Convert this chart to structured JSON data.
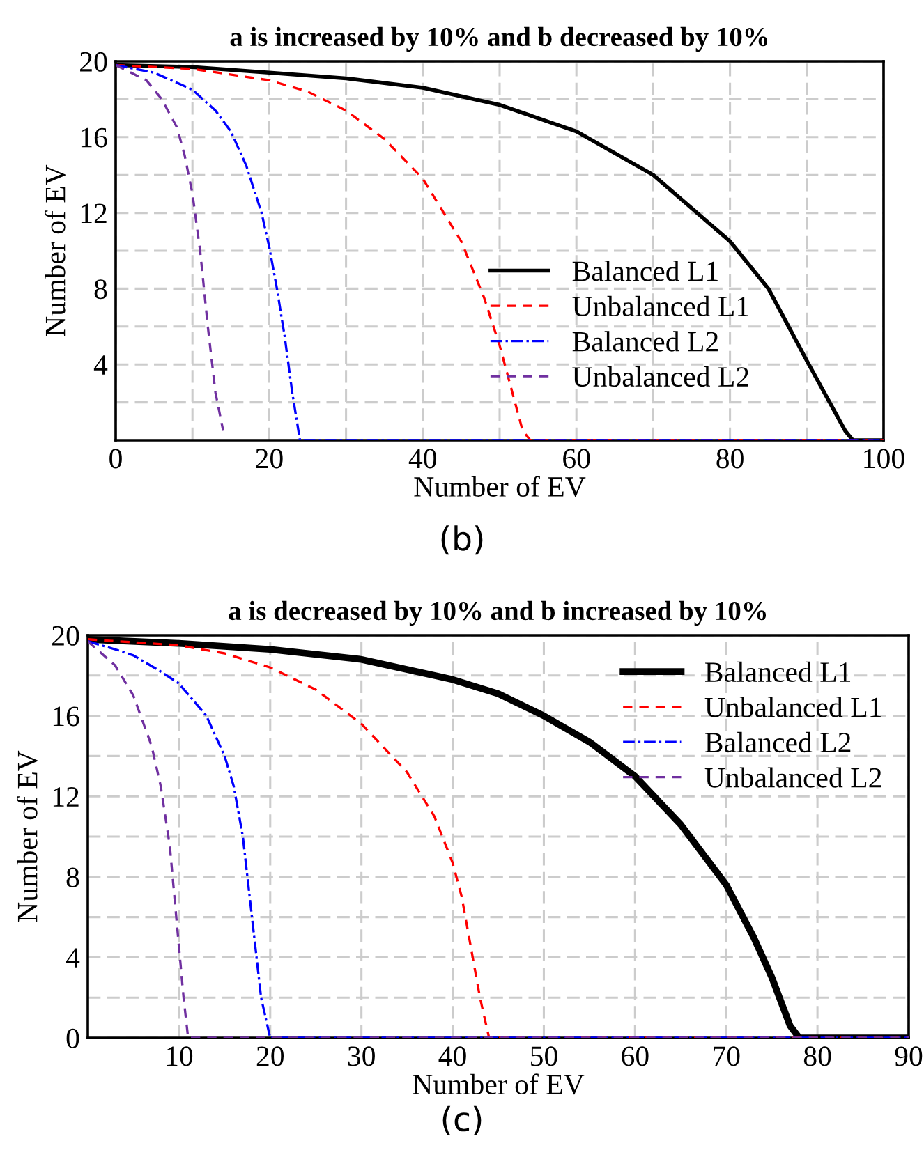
{
  "chart_data": [
    {
      "type": "line",
      "title": "a is increased by 10% and b decreased by 10%",
      "xlabel": "Number of EV",
      "ylabel": "Number of EV",
      "xlim": [
        0,
        100
      ],
      "ylim": [
        0,
        20
      ],
      "xticks": [
        0,
        {
          "value": 10,
          "label": null
        },
        20,
        {
          "value": 30,
          "label": null
        },
        40,
        {
          "value": 50,
          "label": null
        },
        60,
        {
          "value": 70,
          "label": null
        },
        80,
        {
          "value": 90,
          "label": null
        },
        100
      ],
      "yticks": [
        {
          "value": 2,
          "label": null
        },
        4,
        {
          "value": 6,
          "label": null
        },
        8,
        {
          "value": 10,
          "label": null
        },
        12,
        {
          "value": 14,
          "label": null
        },
        16,
        {
          "value": 18,
          "label": null
        },
        20
      ],
      "grid": true,
      "legend": "right",
      "annotations": [
        "(b)"
      ],
      "series": [
        {
          "name": "Balanced L1",
          "color": "#000000",
          "line_style": "solid",
          "x": [
            0,
            10,
            20,
            30,
            40,
            50,
            60,
            70,
            80,
            85,
            90,
            95,
            96,
            100
          ],
          "values": [
            19.8,
            19.7,
            19.4,
            19.1,
            18.6,
            17.7,
            16.3,
            14.0,
            10.5,
            8.0,
            4.2,
            0.5,
            0,
            0
          ]
        },
        {
          "name": "Unbalanced L1",
          "color": "#ff0000",
          "line_style": "dashed",
          "x": [
            0,
            10,
            20,
            25,
            30,
            35,
            40,
            45,
            48,
            50,
            52,
            53,
            54,
            100
          ],
          "values": [
            19.8,
            19.6,
            19.0,
            18.4,
            17.4,
            15.9,
            13.8,
            10.5,
            7.5,
            5,
            2,
            0.5,
            0,
            0
          ]
        },
        {
          "name": "Balanced L2",
          "color": "#0000ff",
          "line_style": "dotted",
          "x": [
            0,
            5,
            10,
            13,
            15,
            17,
            19,
            20,
            21,
            22,
            23,
            24,
            100
          ],
          "values": [
            19.8,
            19.4,
            18.5,
            17.4,
            16.3,
            14.5,
            12,
            10.2,
            8,
            5.5,
            2.5,
            0,
            0
          ]
        },
        {
          "name": "Unbalanced L2",
          "color": "#7030a0",
          "line_style": "dashed",
          "x": [
            0,
            4,
            6,
            8,
            9,
            10,
            11,
            12,
            13,
            14
          ],
          "values": [
            19.8,
            19.0,
            18.0,
            16.5,
            15,
            13,
            10,
            6,
            2.5,
            0.5
          ]
        }
      ]
    },
    {
      "type": "line",
      "title": "a is decreased by 10% and b increased by 10%",
      "xlabel": "Number of EV",
      "ylabel": "Number of EV",
      "xlim": [
        0,
        90
      ],
      "ylim": [
        0,
        20
      ],
      "xticks": [
        10,
        20,
        30,
        40,
        50,
        60,
        70,
        80,
        90
      ],
      "yticks": [
        0,
        {
          "value": 2,
          "label": null
        },
        4,
        {
          "value": 6,
          "label": null
        },
        8,
        {
          "value": 10,
          "label": null
        },
        12,
        {
          "value": 14,
          "label": null
        },
        16,
        {
          "value": 18,
          "label": null
        },
        20
      ],
      "grid": true,
      "legend": "top right",
      "annotations": [
        "(c)"
      ],
      "series": [
        {
          "name": "Balanced L1",
          "color": "#000000",
          "line_style": "solid",
          "x": [
            0,
            10,
            20,
            30,
            40,
            45,
            50,
            55,
            60,
            65,
            70,
            73,
            75,
            77,
            78,
            90
          ],
          "values": [
            19.8,
            19.6,
            19.3,
            18.8,
            17.8,
            17.1,
            16.0,
            14.7,
            13.0,
            10.6,
            7.6,
            5.0,
            3.0,
            0.6,
            0,
            0
          ]
        },
        {
          "name": "Unbalanced L1",
          "color": "#ff0000",
          "line_style": "dashed",
          "x": [
            0,
            10,
            15,
            20,
            25,
            30,
            35,
            38,
            40,
            41,
            42,
            43,
            44,
            90
          ],
          "values": [
            19.8,
            19.5,
            19.1,
            18.4,
            17.3,
            15.6,
            13.2,
            11,
            8.7,
            7,
            4.5,
            2,
            0,
            0
          ]
        },
        {
          "name": "Balanced L2",
          "color": "#0000ff",
          "line_style": "dotted",
          "x": [
            0,
            3,
            5,
            8,
            10,
            13,
            15,
            16,
            17,
            18,
            19,
            20,
            90
          ],
          "values": [
            19.7,
            19.3,
            19.0,
            18.2,
            17.6,
            16,
            14,
            12.5,
            10,
            6,
            2,
            0,
            0
          ]
        },
        {
          "name": "Unbalanced L2",
          "color": "#7030a0",
          "line_style": "dashed",
          "x": [
            0,
            3,
            5,
            7,
            8,
            9,
            10,
            10.5,
            11,
            90
          ],
          "values": [
            19.7,
            18.5,
            17,
            14.5,
            12.5,
            9.5,
            4.5,
            2,
            0,
            0
          ]
        }
      ]
    }
  ]
}
